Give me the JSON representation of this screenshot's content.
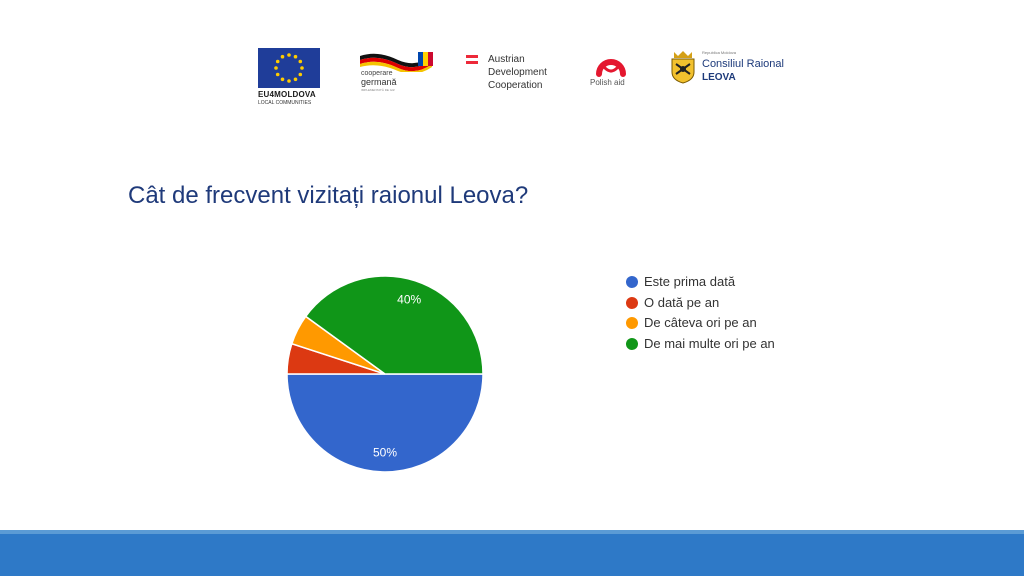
{
  "logos": {
    "eu": {
      "name": "EU4MOLDOVA",
      "subtitle": "LOCAL COMMUNITIES"
    },
    "giz": {
      "line1": "cooperare",
      "line2": "germană",
      "line3": "IMPLEMENTATĂ DE GIZ"
    },
    "ada": {
      "lines": [
        "Austrian",
        "Development",
        "Cooperation"
      ]
    },
    "polish": {
      "name": "Polish aid"
    },
    "council": {
      "small": "Republica Moldova",
      "line1": "Consiliul Raional",
      "line2": "LEOVA"
    }
  },
  "question": "Cât de frecvent vizitați raionul Leova?",
  "chart_data": {
    "type": "pie",
    "title": "",
    "slices": [
      {
        "label": "Este prima dată",
        "value": 50,
        "color": "#3366cc",
        "data_label": "50%"
      },
      {
        "label": "O dată pe an",
        "value": 5,
        "color": "#dc3912",
        "data_label": ""
      },
      {
        "label": "De câteva ori pe an",
        "value": 5,
        "color": "#ff9900",
        "data_label": ""
      },
      {
        "label": "De mai multe ori pe an",
        "value": 40,
        "color": "#109618",
        "data_label": "40%"
      }
    ],
    "legend_position": "right",
    "start": "bottom half begins at 3 o'clock, clockwise"
  },
  "colors": {
    "footer_band": "#2e79c7",
    "footer_line": "#5b9bd5",
    "title": "#1f3a7a"
  }
}
